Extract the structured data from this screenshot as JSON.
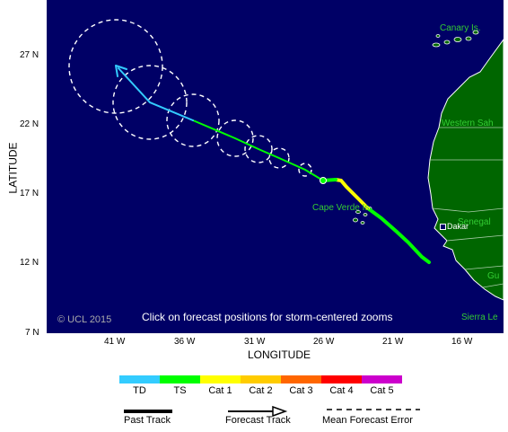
{
  "axes": {
    "x_title": "LONGITUDE",
    "y_title": "LATITUDE",
    "lon_ticks": [
      "41 W",
      "36 W",
      "31 W",
      "26 W",
      "21 W",
      "16 W"
    ],
    "lat_ticks": [
      "27 N",
      "22 N",
      "17 N",
      "12 N",
      "7 N"
    ]
  },
  "places": [
    {
      "name": "Canary Is."
    },
    {
      "name": "Western Sah"
    },
    {
      "name": "Cape Verde Is."
    },
    {
      "name": "Senegal"
    },
    {
      "name": "Gu"
    },
    {
      "name": "Sierra Le"
    }
  ],
  "city": {
    "name": "Dakar"
  },
  "note": "Click on forecast positions for storm-centered zooms",
  "copyright": "© UCL 2015",
  "legend": {
    "categories": [
      {
        "label": "TD",
        "color": "#33ccff"
      },
      {
        "label": "TS",
        "color": "#00ff00"
      },
      {
        "label": "Cat 1",
        "color": "#ffff00"
      },
      {
        "label": "Cat 2",
        "color": "#ffcc00"
      },
      {
        "label": "Cat 3",
        "color": "#ff6600"
      },
      {
        "label": "Cat 4",
        "color": "#ff0000"
      },
      {
        "label": "Cat 5",
        "color": "#cc00cc"
      }
    ],
    "past_track": "Past Track",
    "forecast_track": "Forecast Track",
    "mean_error": "Mean Forecast Error"
  },
  "colors": {
    "ocean": "#000066",
    "land": "#006600",
    "coast": "#ffffff"
  }
}
